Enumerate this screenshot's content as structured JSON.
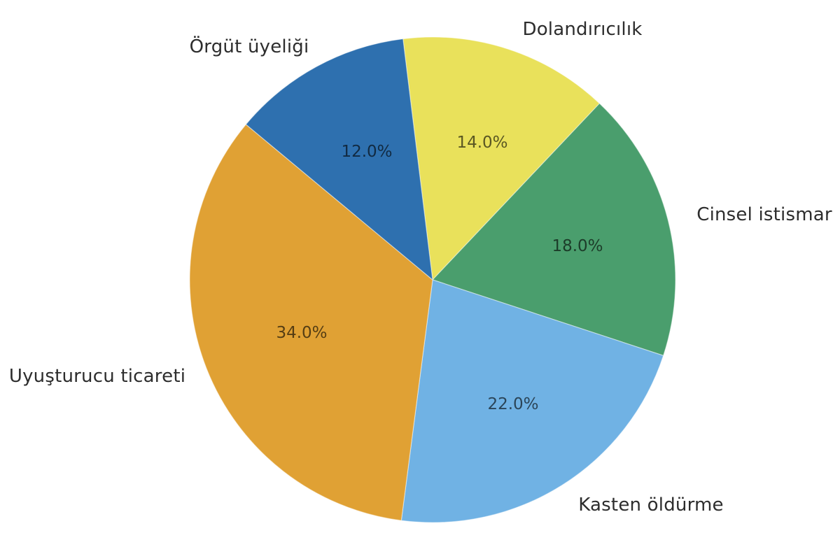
{
  "chart_data": {
    "type": "pie",
    "direction": "clockwise",
    "start_angle_deg": 97,
    "legend": "none",
    "background": "#ffffff",
    "label_position": "outside",
    "pct_format": "one-decimal-percent",
    "slices": [
      {
        "label": "Dolandırıcılık",
        "value": 14.0,
        "pct_label": "14.0%",
        "color": "#e9e15b"
      },
      {
        "label": "Cinsel istismar",
        "value": 18.0,
        "pct_label": "18.0%",
        "color": "#4a9e6d"
      },
      {
        "label": "Kasten öldürme",
        "value": 22.0,
        "pct_label": "22.0%",
        "color": "#70b2e4"
      },
      {
        "label": "Uyuşturucu ticareti",
        "value": 34.0,
        "pct_label": "34.0%",
        "color": "#e0a134"
      },
      {
        "label": "Örgüt üyeliği",
        "value": 12.0,
        "pct_label": "12.0%",
        "color": "#2e70af"
      }
    ]
  }
}
